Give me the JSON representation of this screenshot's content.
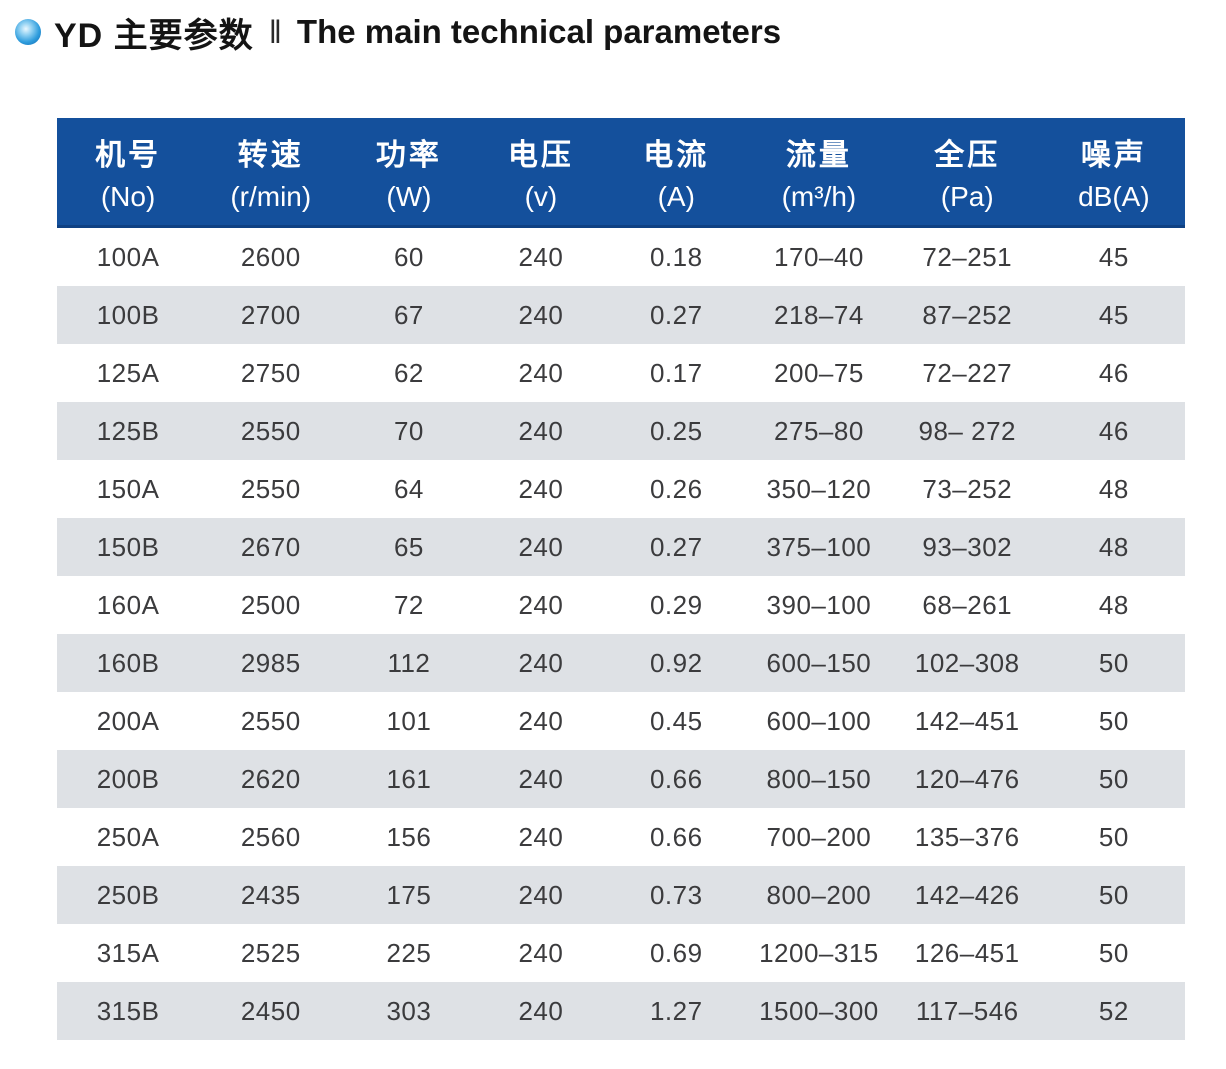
{
  "title": {
    "cn": "YD 主要参数",
    "separator": "‖",
    "en": "The main technical parameters"
  },
  "colors": {
    "header_bg": "#14509c",
    "header_text": "#ffffff",
    "row_alt_bg": "#dee1e5",
    "row_text": "#3b3b3d",
    "bullet_blue": "#1c85d3"
  },
  "table": {
    "columns": [
      {
        "cn": "机号",
        "unit": "(No)"
      },
      {
        "cn": "转速",
        "unit": "(r/min)"
      },
      {
        "cn": "功率",
        "unit": "(W)"
      },
      {
        "cn": "电压",
        "unit": "(v)"
      },
      {
        "cn": "电流",
        "unit": "(A)"
      },
      {
        "cn": "流量",
        "unit": "(m³/h)"
      },
      {
        "cn": "全压",
        "unit": "(Pa)"
      },
      {
        "cn": "噪声",
        "unit": "dB(A)"
      }
    ],
    "rows": [
      [
        "100A",
        "2600",
        "60",
        "240",
        "0.18",
        "170–40",
        "72–251",
        "45"
      ],
      [
        "100B",
        "2700",
        "67",
        "240",
        "0.27",
        "218–74",
        "87–252",
        "45"
      ],
      [
        "125A",
        "2750",
        "62",
        "240",
        "0.17",
        "200–75",
        "72–227",
        "46"
      ],
      [
        "125B",
        "2550",
        "70",
        "240",
        "0.25",
        "275–80",
        "98– 272",
        "46"
      ],
      [
        "150A",
        "2550",
        "64",
        "240",
        "0.26",
        "350–120",
        "73–252",
        "48"
      ],
      [
        "150B",
        "2670",
        "65",
        "240",
        "0.27",
        "375–100",
        "93–302",
        "48"
      ],
      [
        "160A",
        "2500",
        "72",
        "240",
        "0.29",
        "390–100",
        "68–261",
        "48"
      ],
      [
        "160B",
        "2985",
        "112",
        "240",
        "0.92",
        "600–150",
        "102–308",
        "50"
      ],
      [
        "200A",
        "2550",
        "101",
        "240",
        "0.45",
        "600–100",
        "142–451",
        "50"
      ],
      [
        "200B",
        "2620",
        "161",
        "240",
        "0.66",
        "800–150",
        "120–476",
        "50"
      ],
      [
        "250A",
        "2560",
        "156",
        "240",
        "0.66",
        "700–200",
        "135–376",
        "50"
      ],
      [
        "250B",
        "2435",
        "175",
        "240",
        "0.73",
        "800–200",
        "142–426",
        "50"
      ],
      [
        "315A",
        "2525",
        "225",
        "240",
        "0.69",
        "1200–315",
        "126–451",
        "50"
      ],
      [
        "315B",
        "2450",
        "303",
        "240",
        "1.27",
        "1500–300",
        "117–546",
        "52"
      ]
    ]
  }
}
